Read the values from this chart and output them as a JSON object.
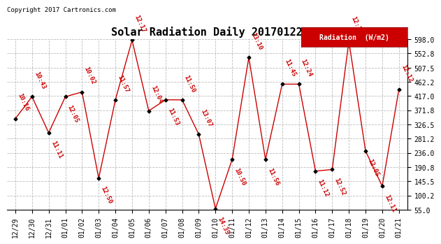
{
  "title": "Solar Radiation Daily 20170122",
  "copyright": "Copyright 2017 Cartronics.com",
  "legend_label": "Radiation  (W/m2)",
  "legend_bg": "#cc0000",
  "legend_fg": "#ffffff",
  "x_labels": [
    "12/29",
    "12/30",
    "12/31",
    "01/01",
    "01/02",
    "01/03",
    "01/04",
    "01/05",
    "01/06",
    "01/07",
    "01/08",
    "01/09",
    "01/10",
    "01/11",
    "01/12",
    "01/13",
    "01/14",
    "01/15",
    "01/16",
    "01/17",
    "01/18",
    "01/19",
    "01/20",
    "01/21"
  ],
  "y_values": [
    345,
    415,
    300,
    415,
    430,
    155,
    405,
    595,
    370,
    405,
    405,
    295,
    58,
    215,
    540,
    215,
    455,
    455,
    178,
    183,
    592,
    242,
    130,
    438
  ],
  "point_labels": [
    "10:16",
    "10:43",
    "11:11",
    "12:05",
    "10:02",
    "12:50",
    "11:57",
    "12:17",
    "12:04",
    "11:53",
    "11:50",
    "13:07",
    "14:35",
    "10:50",
    "13:10",
    "11:56",
    "11:45",
    "12:24",
    "11:12",
    "12:52",
    "12:13",
    "12:05",
    "12:11",
    "12:12"
  ],
  "label_above": [
    true,
    true,
    false,
    false,
    true,
    false,
    true,
    true,
    true,
    false,
    true,
    true,
    false,
    false,
    true,
    false,
    true,
    true,
    false,
    false,
    true,
    false,
    false,
    true
  ],
  "ylim_low": 55.0,
  "ylim_high": 598.0,
  "ytick_values": [
    55.0,
    100.2,
    145.5,
    190.8,
    236.0,
    281.2,
    326.5,
    371.8,
    417.0,
    462.2,
    507.5,
    552.8,
    598.0
  ],
  "line_color": "#cc0000",
  "marker_color": "#000000",
  "bg_color": "#ffffff",
  "grid_color": "#bbbbbb",
  "label_color": "#cc0000",
  "title_fontsize": 11,
  "tick_fontsize": 7,
  "label_fontsize": 6.5
}
